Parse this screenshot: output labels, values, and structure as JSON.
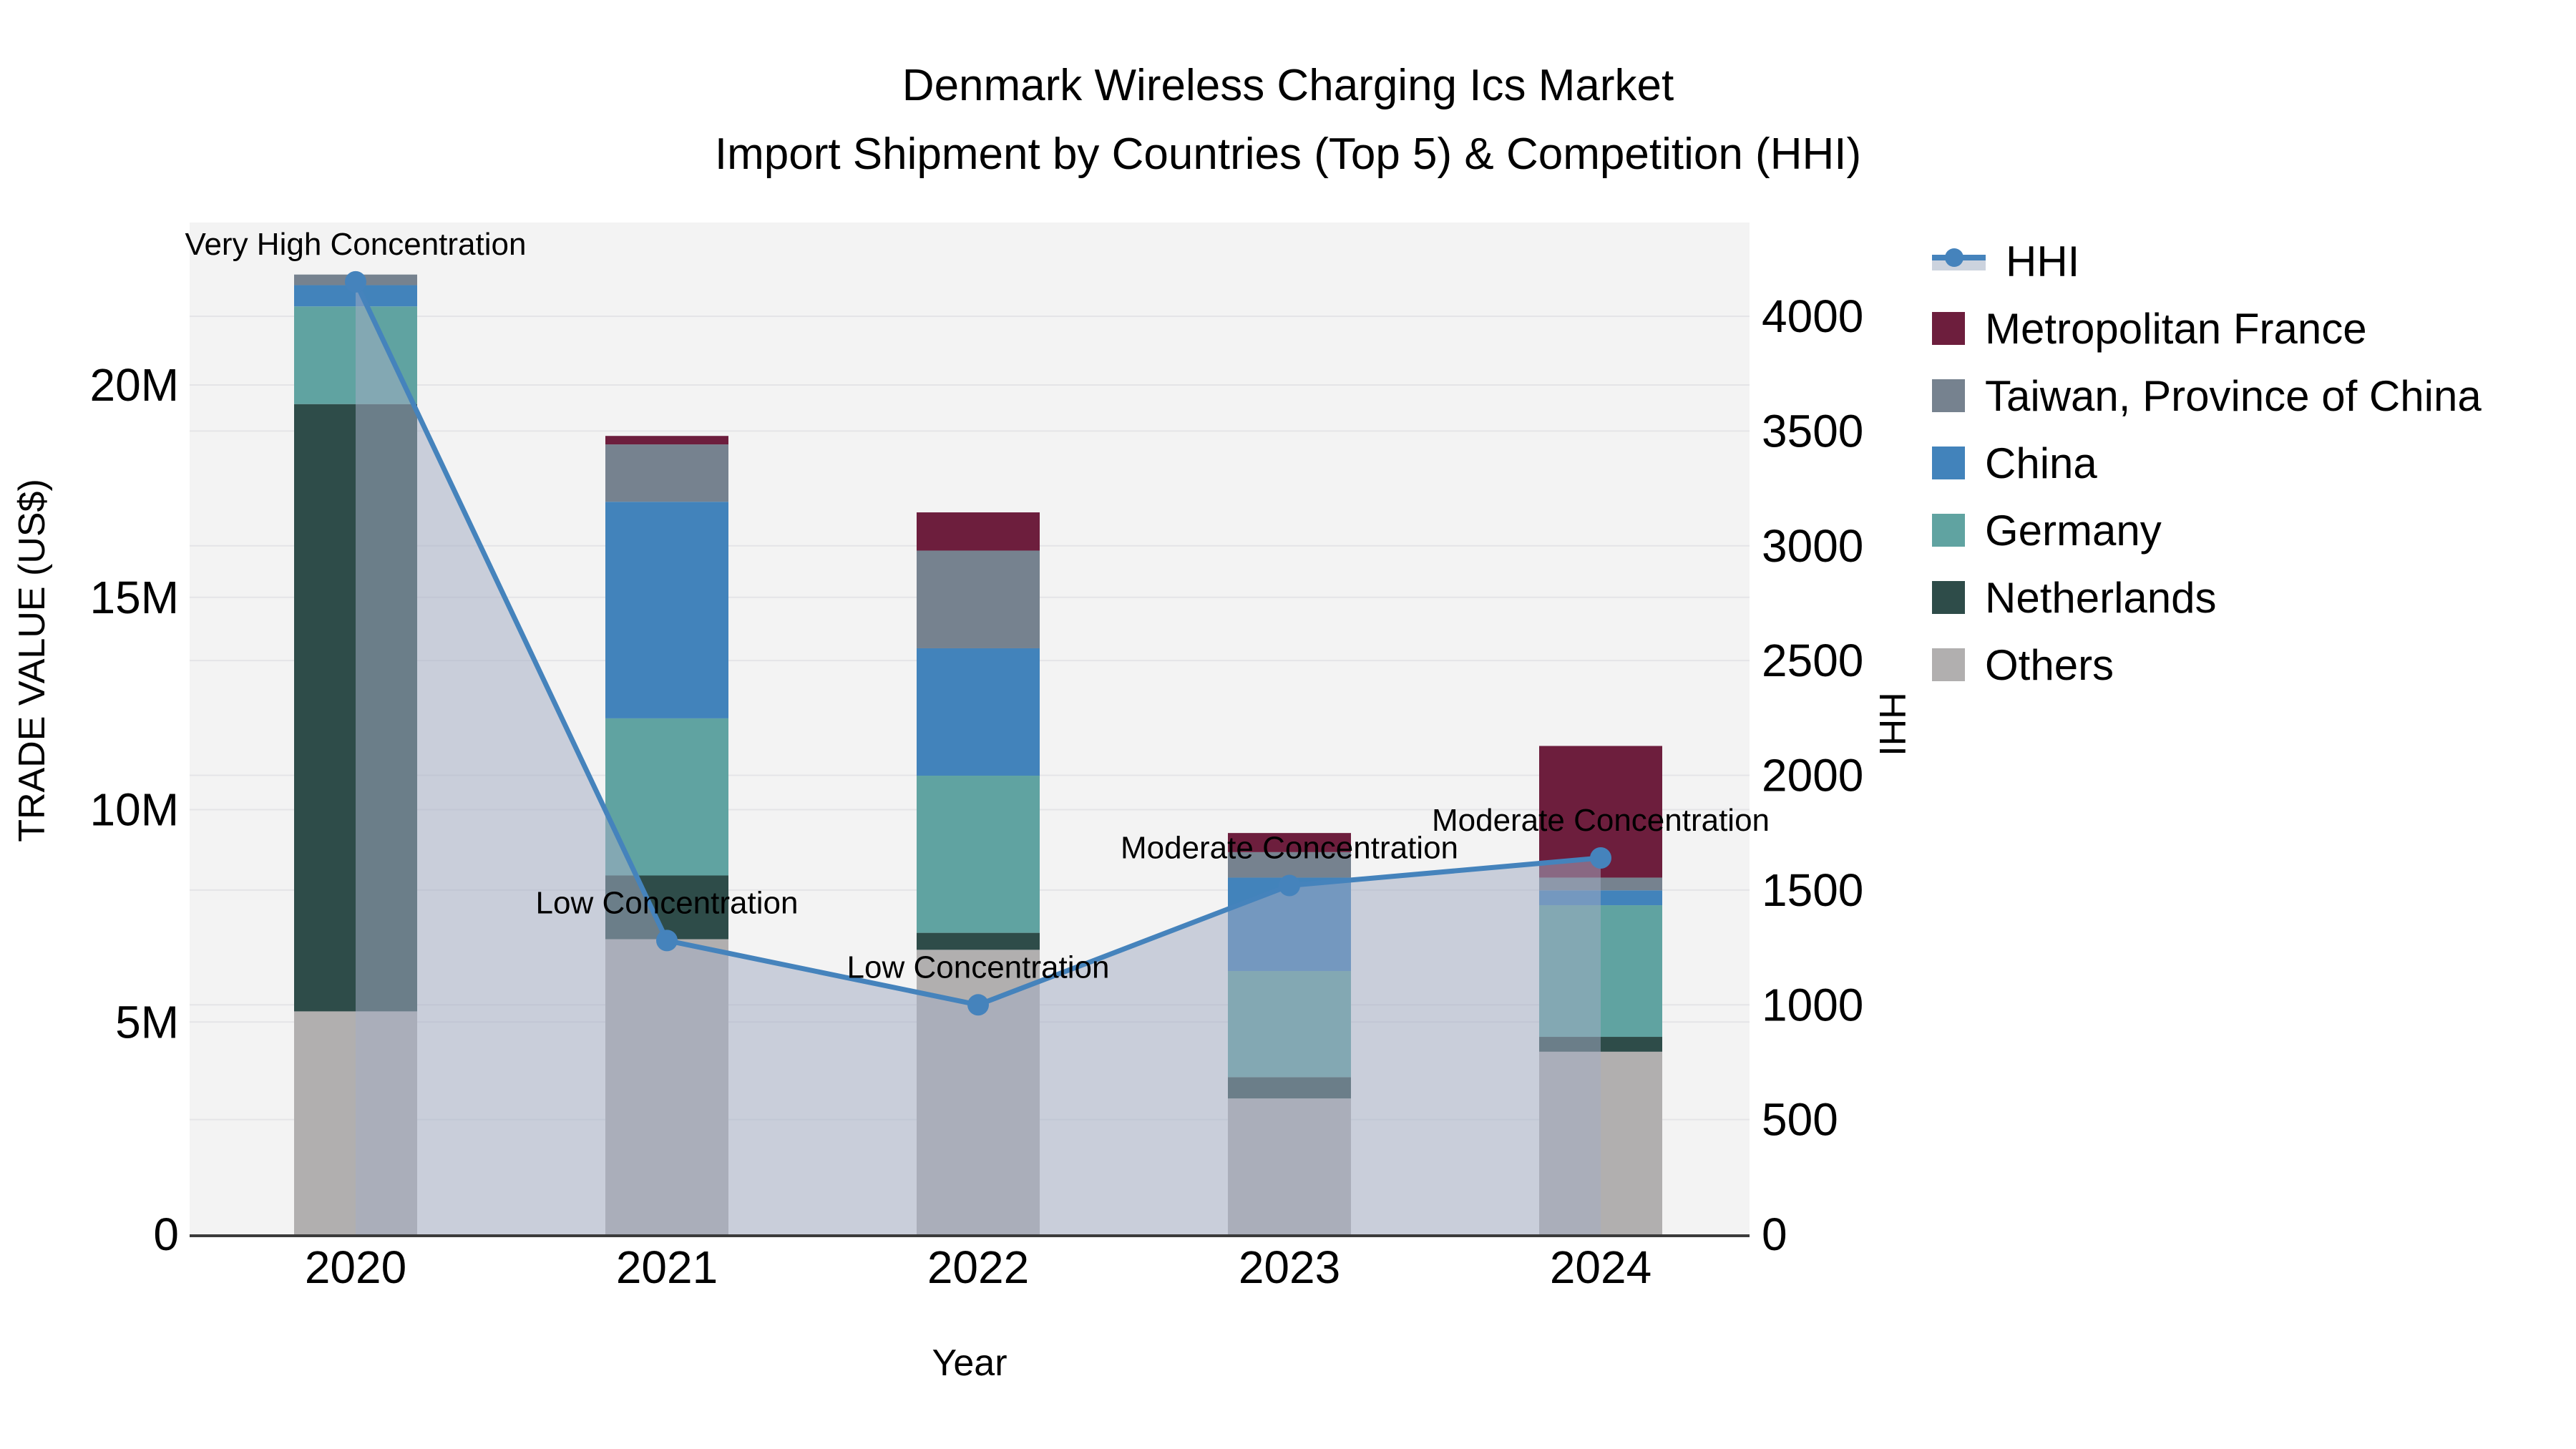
{
  "title": {
    "line1": "Denmark Wireless Charging Ics Market",
    "line2": "Import Shipment by Countries (Top 5) & Competition (HHI)"
  },
  "axes": {
    "left": {
      "title": "TRADE VALUE (US$)",
      "tick_labels": [
        "0",
        "5M",
        "10M",
        "15M",
        "20M"
      ],
      "tick_values_m": [
        0,
        5,
        10,
        15,
        20
      ]
    },
    "right": {
      "title": "HHI",
      "tick_labels": [
        "0",
        "500",
        "1000",
        "1500",
        "2000",
        "2500",
        "3000",
        "3500",
        "4000"
      ],
      "tick_values": [
        0,
        500,
        1000,
        1500,
        2000,
        2500,
        3000,
        3500,
        4000
      ]
    },
    "x": {
      "title": "Year",
      "tick_labels": [
        "2020",
        "2021",
        "2022",
        "2023",
        "2024"
      ]
    }
  },
  "legend": {
    "items": [
      {
        "label": "HHI",
        "kind": "line"
      },
      {
        "label": "Metropolitan France",
        "kind": "swatch",
        "color": "#6d1e3d"
      },
      {
        "label": "Taiwan, Province of China",
        "kind": "swatch",
        "color": "#76828f"
      },
      {
        "label": "China",
        "kind": "swatch",
        "color": "#4283bb"
      },
      {
        "label": "Germany",
        "kind": "swatch",
        "color": "#60a3a1"
      },
      {
        "label": "Netherlands",
        "kind": "swatch",
        "color": "#2e4c49"
      },
      {
        "label": "Others",
        "kind": "swatch",
        "color": "#b1afaf"
      }
    ]
  },
  "colors": {
    "plot_bg": "#f3f3f3",
    "grid": "#e4e4e7",
    "axis_line": "#3b3b3b",
    "hhi_line": "#4583bc",
    "hhi_area": "rgba(163,173,196,0.52)",
    "hhi_legend_band": "#ccd3de",
    "text": "#000000"
  },
  "chart_data": {
    "type": "bar",
    "subtype": "stacked-bar-with-line-overlay",
    "title": "Denmark Wireless Charging Ics Market — Import Shipment by Countries (Top 5) & Competition (HHI)",
    "categories": [
      "2020",
      "2021",
      "2022",
      "2023",
      "2024"
    ],
    "xlabel": "Year",
    "ylabel_left": "TRADE VALUE (US$)",
    "ylabel_right": "HHI",
    "bar_unit": "million US$",
    "ylim_left_m": [
      0,
      23.8
    ],
    "ylim_right": [
      0,
      4000
    ],
    "grid": true,
    "legend_position": "right",
    "series": [
      {
        "name": "Others",
        "color": "#b1afaf",
        "values_m": [
          5.25,
          6.95,
          6.7,
          3.2,
          4.3
        ]
      },
      {
        "name": "Netherlands",
        "color": "#2e4c49",
        "values_m": [
          14.3,
          1.5,
          0.4,
          0.5,
          0.35
        ]
      },
      {
        "name": "Germany",
        "color": "#60a3a1",
        "values_m": [
          2.3,
          3.7,
          3.7,
          2.5,
          3.1
        ]
      },
      {
        "name": "China",
        "color": "#4283bb",
        "values_m": [
          0.5,
          5.1,
          3.0,
          2.2,
          0.35
        ]
      },
      {
        "name": "Taiwan, Province of China",
        "color": "#76828f",
        "values_m": [
          0.25,
          1.35,
          2.3,
          0.6,
          0.3
        ]
      },
      {
        "name": "Metropolitan France",
        "color": "#6d1e3d",
        "values_m": [
          0.0,
          0.2,
          0.9,
          0.45,
          3.1
        ]
      }
    ],
    "totals_m": [
      22.6,
      18.8,
      17.0,
      9.45,
      11.5
    ],
    "line_series": {
      "name": "HHI",
      "color": "#4583bc",
      "values": [
        4150,
        1280,
        1000,
        1520,
        1640
      ],
      "area_fill": "rgba(163,173,196,0.52)"
    },
    "annotations": [
      {
        "x": "2020",
        "text": "Very High Concentration"
      },
      {
        "x": "2021",
        "text": "Low Concentration"
      },
      {
        "x": "2022",
        "text": "Low Concentration"
      },
      {
        "x": "2023",
        "text": "Moderate Concentration"
      },
      {
        "x": "2024",
        "text": "Moderate Concentration"
      }
    ]
  }
}
